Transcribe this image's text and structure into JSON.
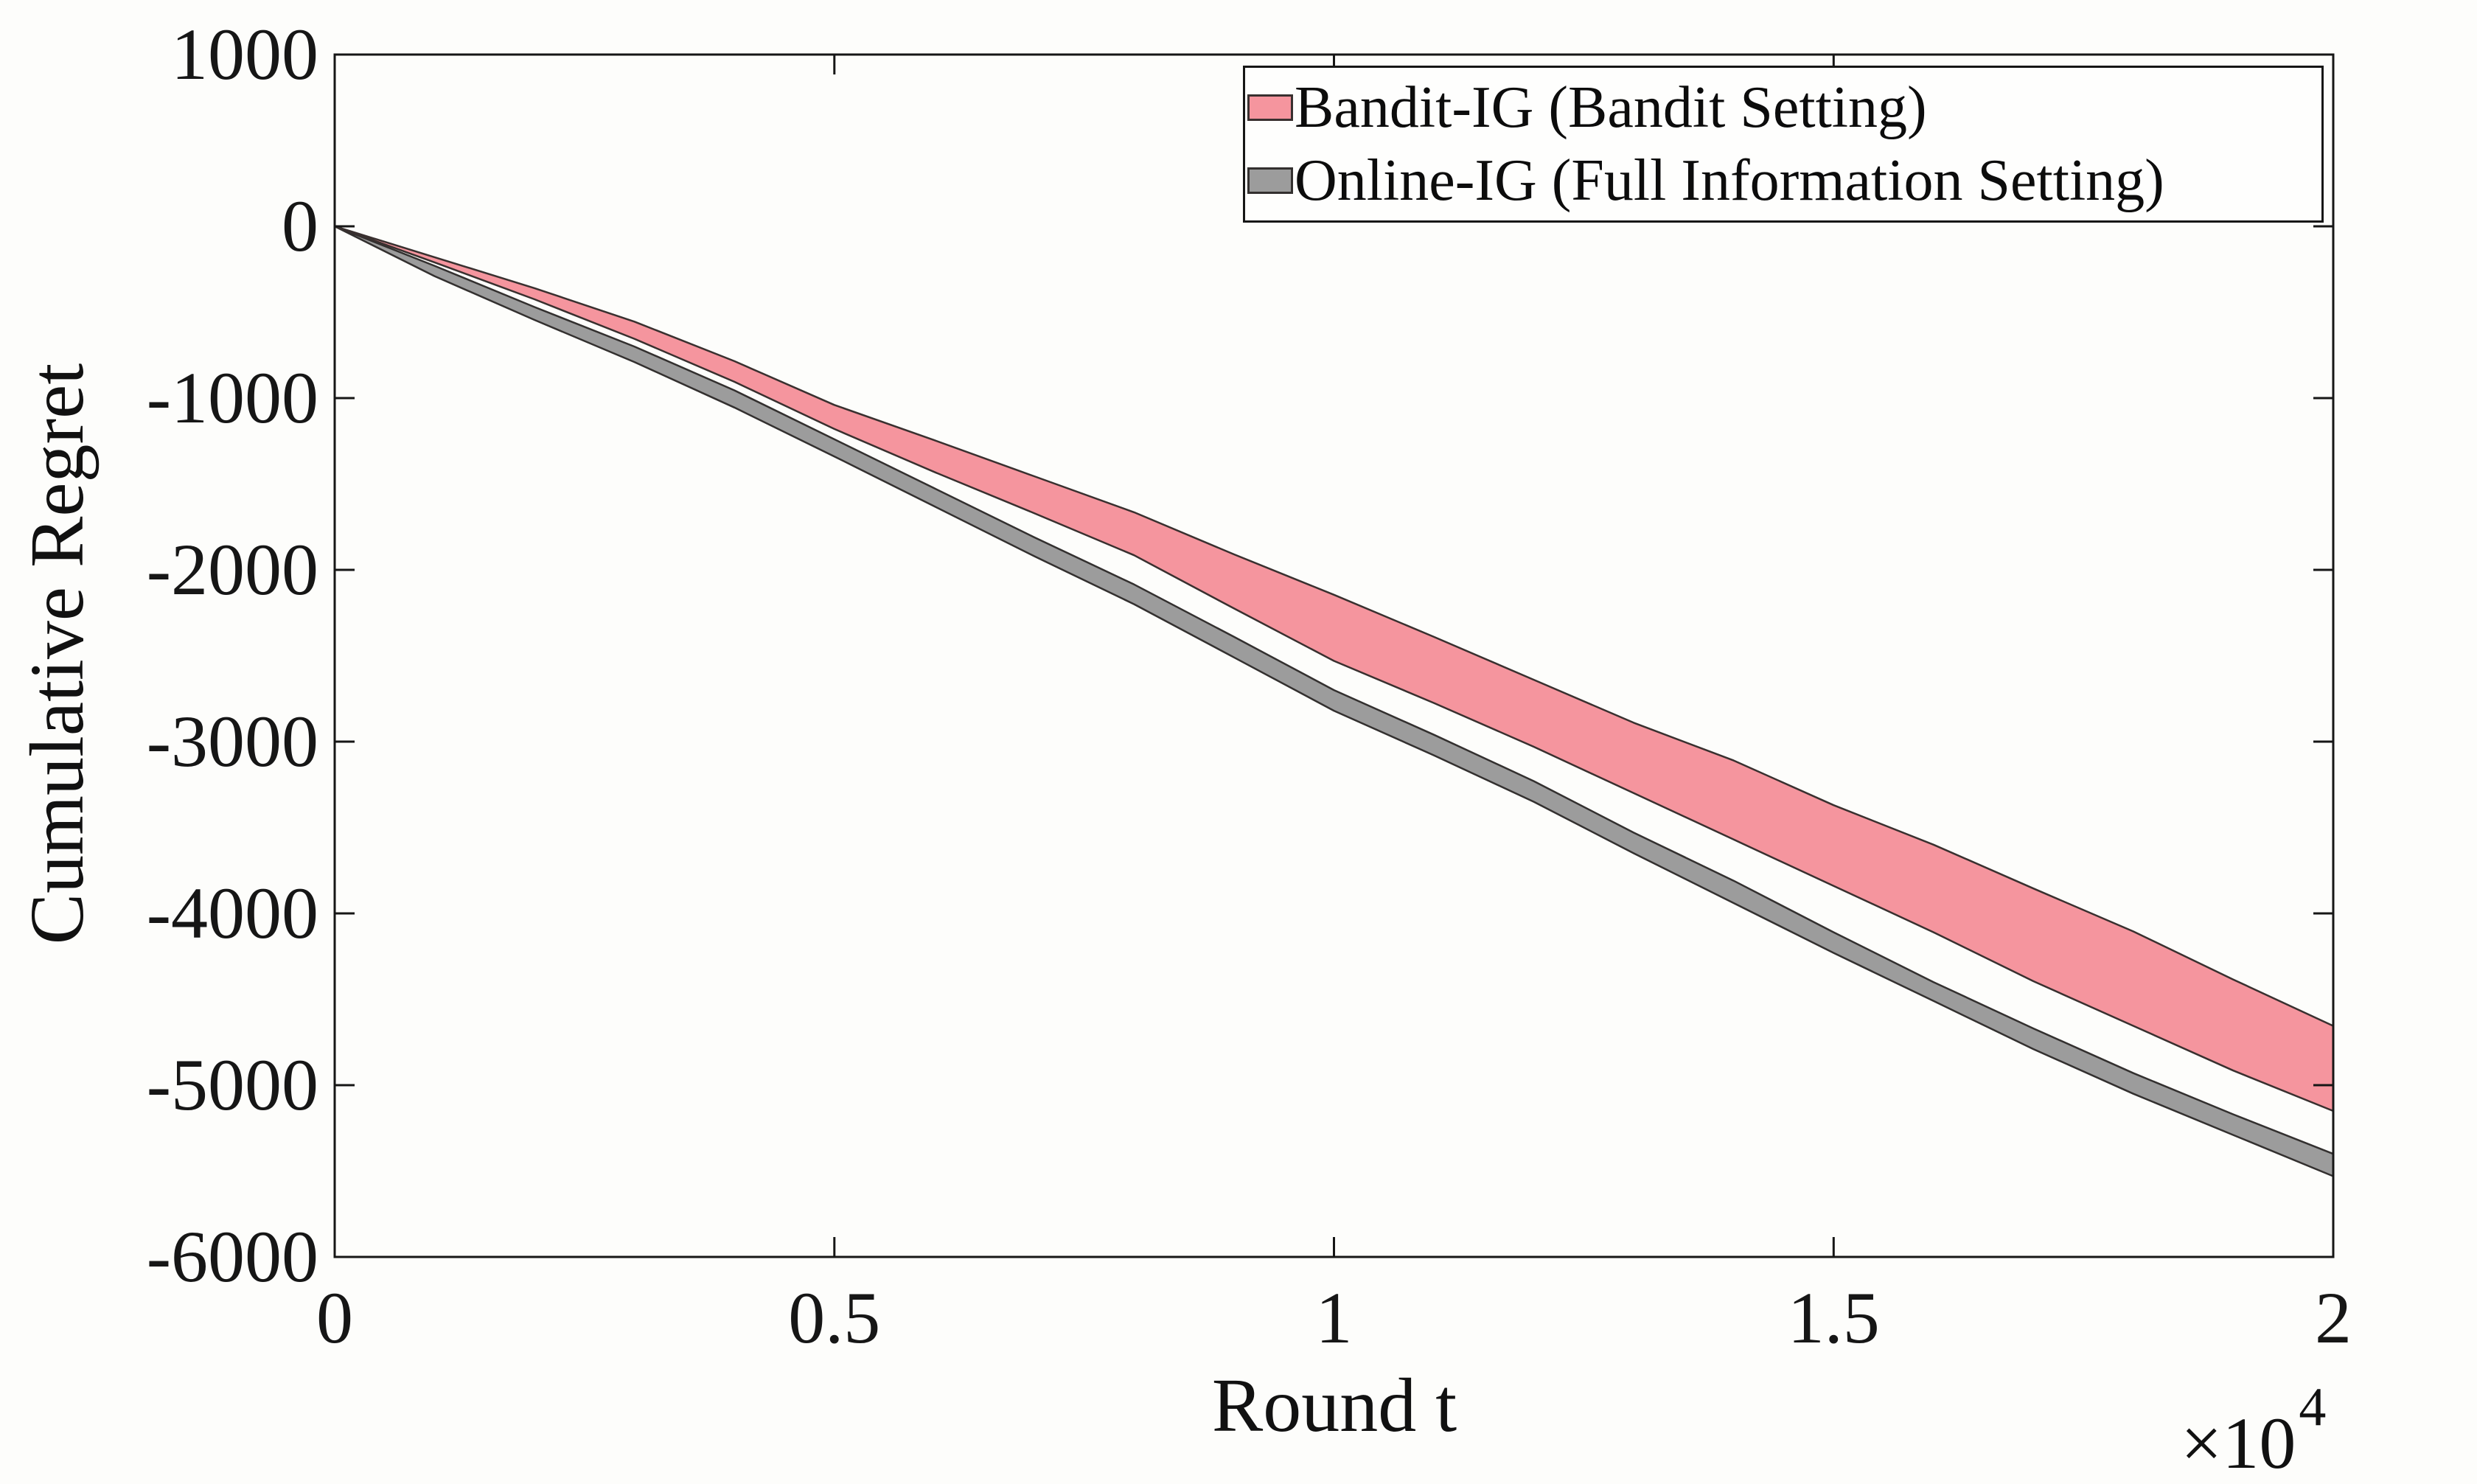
{
  "figure": {
    "background": "#fdfdfb",
    "axis_color": "#161616"
  },
  "chart_data": {
    "type": "area",
    "title": "",
    "xlabel": "Round t",
    "ylabel": "Cumulative Regret",
    "x_offset_label": {
      "base": "×10",
      "exp": "4"
    },
    "xlim": [
      0,
      20000
    ],
    "ylim": [
      -6000,
      1000
    ],
    "grid": false,
    "legend_position": "top-right",
    "xticks": {
      "values": [
        0,
        5000,
        10000,
        15000,
        20000
      ],
      "labels": [
        "0",
        "0.5",
        "1",
        "1.5",
        "2"
      ]
    },
    "yticks": {
      "values": [
        1000,
        0,
        -1000,
        -2000,
        -3000,
        -4000,
        -5000,
        -6000
      ],
      "labels": [
        "1000",
        "0",
        "-1000",
        "-2000",
        "-3000",
        "-4000",
        "-5000",
        "-6000"
      ]
    },
    "x_points": [
      0,
      1000,
      2000,
      3000,
      4000,
      5000,
      6000,
      7000,
      8000,
      9000,
      10000,
      11000,
      12000,
      13000,
      14000,
      15000,
      16000,
      17000,
      18000,
      19000,
      20000
    ],
    "series": [
      {
        "id": "bandit-ig",
        "name": "Bandit-IG (Bandit Setting)",
        "fill": "#F5959E",
        "edge": "#39302f",
        "upper": [
          0,
          -180,
          -360,
          -555,
          -785,
          -1040,
          -1245,
          -1455,
          -1665,
          -1910,
          -2145,
          -2390,
          -2640,
          -2890,
          -3110,
          -3370,
          -3600,
          -3855,
          -4105,
          -4385,
          -4655
        ],
        "lower": [
          0,
          -210,
          -425,
          -655,
          -905,
          -1180,
          -1430,
          -1670,
          -1915,
          -2225,
          -2530,
          -2775,
          -3030,
          -3300,
          -3570,
          -3840,
          -4110,
          -4395,
          -4655,
          -4915,
          -5150
        ]
      },
      {
        "id": "online-ig",
        "name": "Online-IG (Full Information Setting)",
        "fill": "#9C9C9C",
        "edge": "#33302f",
        "upper": [
          0,
          -230,
          -470,
          -700,
          -955,
          -1240,
          -1525,
          -1810,
          -2085,
          -2390,
          -2700,
          -2960,
          -3230,
          -3530,
          -3810,
          -4110,
          -4400,
          -4670,
          -4930,
          -5170,
          -5400
        ],
        "lower": [
          0,
          -290,
          -545,
          -790,
          -1055,
          -1340,
          -1630,
          -1920,
          -2200,
          -2510,
          -2820,
          -3080,
          -3350,
          -3650,
          -3940,
          -4230,
          -4510,
          -4790,
          -5050,
          -5290,
          -5530
        ]
      }
    ]
  }
}
